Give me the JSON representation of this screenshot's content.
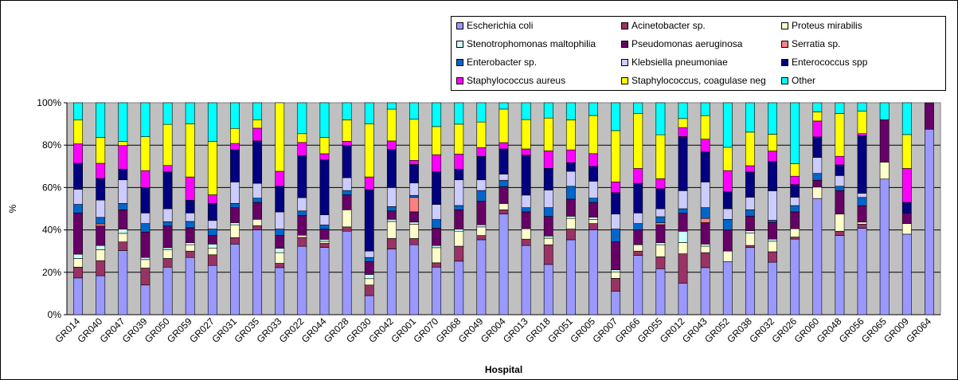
{
  "chart_data": {
    "type": "bar",
    "stacked": true,
    "percent": true,
    "title": "",
    "xlabel": "Hospital",
    "ylabel": "%",
    "ylim": [
      0,
      100
    ],
    "yticks": [
      "0%",
      "20%",
      "40%",
      "60%",
      "80%",
      "100%"
    ],
    "grid": true,
    "plot_background": "#c0c0c0",
    "legend_position": "top-right",
    "categories": [
      "GR014",
      "GR040",
      "GR047",
      "GR039",
      "GR050",
      "GR059",
      "GR027",
      "GR031",
      "GR035",
      "GR033",
      "GR022",
      "GR044",
      "GR028",
      "GR030",
      "GR042",
      "GR001",
      "GR070",
      "GR068",
      "GR049",
      "GR004",
      "GR013",
      "GR018",
      "GR051",
      "GR005",
      "GR007",
      "GR066",
      "GR055",
      "GR012",
      "GR043",
      "GR052",
      "GR038",
      "GR032",
      "GR026",
      "GR060",
      "GR048",
      "GR056",
      "GR065",
      "GR009",
      "GR064"
    ],
    "series": [
      {
        "name": "Escherichia coli",
        "color": "#9999ff",
        "values": [
          17,
          18,
          30,
          14,
          22,
          27,
          23,
          33,
          40,
          22,
          31,
          33,
          39,
          9,
          31,
          34,
          22,
          25,
          35,
          48,
          33,
          23,
          35,
          40,
          11,
          28,
          23,
          14,
          22,
          25,
          32,
          25,
          36,
          51,
          37,
          42,
          64,
          38,
          84
        ]
      },
      {
        "name": "Acinetobacter sp.",
        "color": "#993366",
        "values": [
          5,
          7,
          4,
          8,
          4,
          3,
          5,
          3,
          2,
          2,
          4,
          2,
          2,
          5,
          5,
          3,
          2,
          7,
          2,
          2,
          3,
          9,
          5,
          3,
          6,
          2,
          6,
          13,
          7,
          0,
          1,
          5,
          1,
          0,
          2,
          2,
          0,
          0,
          0
        ]
      },
      {
        "name": "Proteus mirabilis",
        "color": "#ffffcc",
        "values": [
          4,
          5,
          4,
          4,
          4,
          3,
          3,
          6,
          3,
          5,
          1,
          1,
          8,
          3,
          8,
          7,
          7,
          7,
          4,
          3,
          5,
          3,
          5,
          2,
          3,
          3,
          6,
          5,
          3,
          5,
          6,
          5,
          4,
          5,
          8,
          1,
          8,
          5,
          0
        ]
      },
      {
        "name": "Stenotrophomonas maltophilia",
        "color": "#ccffff",
        "values": [
          2,
          2,
          2,
          1,
          1,
          1,
          2,
          1,
          0,
          2,
          0,
          1,
          0,
          2,
          1,
          1,
          1,
          1,
          1,
          0,
          0,
          1,
          1,
          1,
          1,
          0,
          1,
          5,
          1,
          0,
          1,
          1,
          0,
          0,
          0,
          0,
          0,
          0,
          0
        ]
      },
      {
        "name": "Pseudomonas aeruginosa",
        "color": "#660066",
        "values": [
          19,
          9,
          9,
          12,
          10,
          7,
          4,
          7,
          8,
          6,
          9,
          5,
          7,
          6,
          4,
          5,
          8,
          9,
          11,
          8,
          8,
          9,
          8,
          7,
          13,
          7,
          9,
          8,
          10,
          10,
          7,
          8,
          8,
          3,
          11,
          8,
          20,
          5,
          12
        ]
      },
      {
        "name": "Serratia sp.",
        "color": "#ff8080",
        "values": [
          0,
          1,
          0,
          0,
          0,
          0,
          0,
          0,
          0,
          0,
          0,
          0,
          0,
          0,
          0,
          7,
          0,
          0,
          0,
          0,
          0,
          0,
          0,
          0,
          0,
          0,
          1,
          0,
          2,
          0,
          0,
          0,
          0,
          0,
          0,
          0,
          0,
          0,
          0
        ]
      },
      {
        "name": "Enterobacter sp.",
        "color": "#0066cc",
        "values": [
          4,
          3,
          3,
          4,
          2,
          3,
          3,
          2,
          2,
          3,
          2,
          2,
          2,
          2,
          2,
          1,
          4,
          2,
          5,
          3,
          2,
          4,
          6,
          2,
          6,
          3,
          3,
          2,
          5,
          5,
          3,
          1,
          3,
          3,
          2,
          4,
          0,
          0,
          0
        ]
      },
      {
        "name": "Klebsiella pneumoniae",
        "color": "#ccccff",
        "values": [
          7,
          8,
          11,
          5,
          6,
          4,
          4,
          10,
          7,
          8,
          6,
          5,
          6,
          3,
          9,
          6,
          7,
          12,
          5,
          3,
          6,
          8,
          7,
          8,
          7,
          5,
          4,
          8,
          12,
          5,
          6,
          14,
          4,
          7,
          5,
          2,
          0,
          0,
          0
        ]
      },
      {
        "name": "Enterococcus spp",
        "color": "#000080",
        "values": [
          12,
          10,
          5,
          12,
          17,
          6,
          8,
          15,
          20,
          12,
          19,
          27,
          15,
          29,
          18,
          9,
          15,
          5,
          11,
          12,
          19,
          10,
          4,
          7,
          10,
          14,
          10,
          24,
          14,
          8,
          12,
          14,
          6,
          9,
          5,
          28,
          0,
          5,
          0
        ]
      },
      {
        "name": "Staphylococcus aureus",
        "color": "#ff00ff",
        "values": [
          9,
          7,
          11,
          8,
          3,
          11,
          4,
          3,
          6,
          7,
          6,
          3,
          2,
          6,
          4,
          2,
          8,
          7,
          4,
          3,
          3,
          8,
          6,
          6,
          5,
          7,
          5,
          4,
          6,
          10,
          3,
          5,
          4,
          7,
          4,
          1,
          0,
          16,
          0
        ]
      },
      {
        "name": "Staphylococcus, coagulase neg",
        "color": "#ffff00",
        "values": [
          11,
          12,
          2,
          16,
          19,
          25,
          25,
          7,
          4,
          32,
          4,
          8,
          10,
          25,
          15,
          20,
          13,
          14,
          12,
          16,
          14,
          15,
          14,
          18,
          24,
          26,
          22,
          4,
          11,
          11,
          16,
          8,
          6,
          4,
          20,
          11,
          0,
          16,
          0
        ]
      },
      {
        "name": "Other",
        "color": "#00ffff",
        "values": [
          8,
          16,
          18,
          16,
          10,
          10,
          18,
          12,
          8,
          0,
          14,
          17,
          8,
          10,
          3,
          8,
          11,
          10,
          9,
          3,
          8,
          7,
          8,
          6,
          13,
          5,
          16,
          7,
          6,
          21,
          14,
          15,
          29,
          4,
          5,
          4,
          8,
          15,
          0
        ]
      }
    ]
  }
}
